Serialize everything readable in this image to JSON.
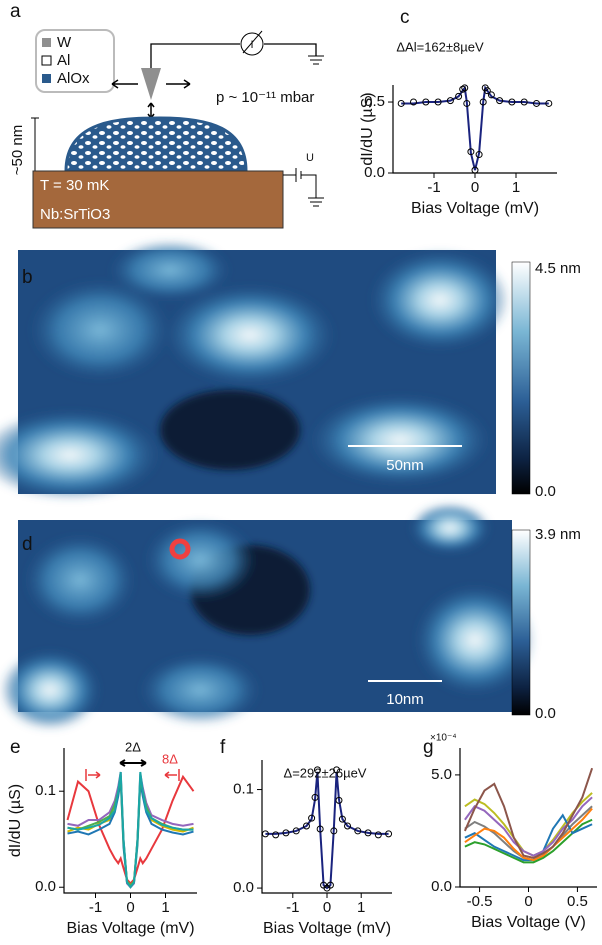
{
  "schematic": {
    "label": "a",
    "legend": [
      "W",
      "Al",
      "AlOx"
    ],
    "meter": "I",
    "pressure": "p ~ 10⁻¹¹ mbar",
    "height": "~50 nm",
    "temperature": "T = 30 mK",
    "substrate": "Nb:SrTiO3",
    "bias": "U"
  },
  "topography_b": {
    "label": "b",
    "colorbar_max": "4.5 nm",
    "colorbar_min": "0.0",
    "scale_bar": "50nm"
  },
  "topography_d": {
    "label": "d",
    "colorbar_max": "3.9 nm",
    "colorbar_min": "0.0",
    "scale_bar": "10nm"
  },
  "chart_data": [
    {
      "type": "line",
      "panel": "c",
      "x_label": "Bias Voltage (mV)",
      "y_label": "dI/dU (µS)",
      "annotations": [
        "ΔAl=162±8µeV"
      ],
      "xlim": [
        -2,
        2
      ],
      "xticks": [
        -1,
        0,
        1
      ],
      "ylim": [
        0,
        0.62
      ],
      "yticks": [
        {
          "value": 0,
          "label": "0.0"
        },
        0.5
      ],
      "x": [
        -1.8,
        -1.5,
        -1.2,
        -0.9,
        -0.6,
        -0.4,
        -0.3,
        -0.25,
        -0.2,
        -0.1,
        0,
        0.1,
        0.2,
        0.25,
        0.3,
        0.4,
        0.6,
        0.9,
        1.2,
        1.5,
        1.8
      ],
      "series": [
        {
          "color": "#1a237e",
          "markers": false,
          "values": [
            0.49,
            0.49,
            0.5,
            0.5,
            0.51,
            0.54,
            0.58,
            0.6,
            0.5,
            0.14,
            0.02,
            0.14,
            0.5,
            0.6,
            0.58,
            0.54,
            0.51,
            0.5,
            0.5,
            0.49,
            0.49
          ]
        },
        {
          "color": "#000000",
          "markers": true,
          "values": [
            0.49,
            0.5,
            0.5,
            0.5,
            0.51,
            0.54,
            0.59,
            0.6,
            0.49,
            0.15,
            0.02,
            0.13,
            0.5,
            0.6,
            0.58,
            0.55,
            0.51,
            0.5,
            0.5,
            0.49,
            0.49
          ]
        }
      ]
    },
    {
      "type": "line",
      "panel": "e",
      "x_label": "Bias Voltage (mV)",
      "y_label": "dI/dU (µS)",
      "annotations": [
        "2Δ",
        "8Δ"
      ],
      "xlim": [
        -1.9,
        1.9
      ],
      "xticks": [
        -1,
        0,
        1
      ],
      "ylim": [
        -0.006,
        0.145
      ],
      "yticks": [
        {
          "value": 0,
          "label": "0.0"
        },
        0.1
      ],
      "x": [
        -1.8,
        -1.5,
        -1.2,
        -0.9,
        -0.6,
        -0.45,
        -0.35,
        -0.28,
        -0.2,
        -0.1,
        0,
        0.1,
        0.2,
        0.28,
        0.35,
        0.45,
        0.6,
        0.9,
        1.2,
        1.5,
        1.8
      ],
      "series": [
        {
          "color": "#e8383d",
          "markers": false,
          "values": [
            0.07,
            0.11,
            0.1,
            0.065,
            0.04,
            0.03,
            0.025,
            0.03,
            0.02,
            0.008,
            0.004,
            0.008,
            0.02,
            0.03,
            0.025,
            0.03,
            0.04,
            0.06,
            0.09,
            0.115,
            0.1
          ]
        },
        {
          "color": "#d4b800",
          "markers": false,
          "values": [
            0.058,
            0.062,
            0.06,
            0.066,
            0.07,
            0.085,
            0.1,
            0.115,
            0.045,
            0.006,
            0.002,
            0.006,
            0.05,
            0.11,
            0.1,
            0.08,
            0.07,
            0.064,
            0.06,
            0.058,
            0.062
          ]
        },
        {
          "color": "#9467bd",
          "markers": false,
          "values": [
            0.066,
            0.064,
            0.07,
            0.07,
            0.078,
            0.09,
            0.105,
            0.12,
            0.05,
            0.004,
            0.0,
            0.004,
            0.05,
            0.118,
            0.104,
            0.088,
            0.075,
            0.07,
            0.066,
            0.064,
            0.066
          ]
        },
        {
          "color": "#1f77b4",
          "markers": false,
          "values": [
            0.056,
            0.058,
            0.055,
            0.06,
            0.066,
            0.078,
            0.095,
            0.112,
            0.042,
            0.005,
            0.001,
            0.005,
            0.044,
            0.11,
            0.095,
            0.078,
            0.066,
            0.06,
            0.057,
            0.055,
            0.058
          ]
        },
        {
          "color": "#4caf50",
          "markers": false,
          "values": [
            0.062,
            0.06,
            0.064,
            0.068,
            0.074,
            0.086,
            0.1,
            0.116,
            0.048,
            0.006,
            0.002,
            0.006,
            0.048,
            0.114,
            0.1,
            0.084,
            0.072,
            0.066,
            0.062,
            0.06,
            0.06
          ]
        },
        {
          "color": "#1aa6a6",
          "markers": false,
          "values": [
            0.062,
            0.06,
            0.062,
            0.065,
            0.072,
            0.08,
            0.1,
            0.12,
            0.05,
            0.005,
            0.0,
            0.005,
            0.05,
            0.12,
            0.1,
            0.08,
            0.072,
            0.065,
            0.062,
            0.06,
            0.06
          ]
        }
      ]
    },
    {
      "type": "line",
      "panel": "f",
      "x_label": "Bias Voltage (mV)",
      "annotations": [
        "Δ=292±26µeV"
      ],
      "xlim": [
        -1.9,
        1.9
      ],
      "xticks": [
        -1,
        0,
        1
      ],
      "ylim": [
        -0.005,
        0.13
      ],
      "yticks": [
        {
          "value": 0,
          "label": "0.0"
        },
        0.1
      ],
      "x": [
        -1.8,
        -1.5,
        -1.2,
        -0.9,
        -0.6,
        -0.45,
        -0.35,
        -0.28,
        -0.2,
        -0.1,
        0,
        0.1,
        0.2,
        0.28,
        0.35,
        0.45,
        0.6,
        0.9,
        1.2,
        1.5,
        1.8
      ],
      "series": [
        {
          "color": "#1a237e",
          "markers": false,
          "values": [
            0.055,
            0.055,
            0.056,
            0.058,
            0.063,
            0.07,
            0.09,
            0.118,
            0.06,
            0.003,
            0.0,
            0.003,
            0.06,
            0.118,
            0.09,
            0.07,
            0.063,
            0.058,
            0.056,
            0.055,
            0.055
          ]
        },
        {
          "color": "#000000",
          "markers": true,
          "values": [
            0.055,
            0.054,
            0.056,
            0.058,
            0.063,
            0.071,
            0.092,
            0.12,
            0.06,
            0.003,
            0.0,
            0.003,
            0.058,
            0.12,
            0.089,
            0.07,
            0.063,
            0.058,
            0.056,
            0.054,
            0.055
          ]
        }
      ]
    },
    {
      "type": "line",
      "panel": "g",
      "x_label": "Bias Voltage (V)",
      "y_multiplier": "×10⁻⁴",
      "xlim": [
        -0.7,
        0.7
      ],
      "xticks": [
        -0.5,
        0,
        0.5
      ],
      "ylim": [
        0,
        6.2
      ],
      "yticks": [
        {
          "value": 0,
          "label": "0.0"
        },
        {
          "value": 5,
          "label": "5.0"
        }
      ],
      "x": [
        -0.65,
        -0.55,
        -0.45,
        -0.35,
        -0.25,
        -0.15,
        -0.05,
        0.05,
        0.15,
        0.25,
        0.35,
        0.45,
        0.55,
        0.65
      ],
      "series": [
        {
          "color": "#bcbd22",
          "markers": false,
          "values": [
            3.6,
            3.9,
            3.7,
            3.3,
            2.8,
            2.2,
            1.6,
            1.4,
            1.6,
            2.1,
            2.7,
            3.3,
            3.8,
            4.2
          ]
        },
        {
          "color": "#7f7f7f",
          "markers": false,
          "values": [
            2.6,
            2.9,
            2.7,
            2.4,
            2.0,
            1.6,
            1.3,
            1.2,
            1.4,
            1.8,
            2.3,
            2.8,
            3.2,
            3.6
          ]
        },
        {
          "color": "#2ca02c",
          "markers": false,
          "values": [
            1.8,
            2.0,
            1.9,
            1.7,
            1.5,
            1.3,
            1.1,
            1.1,
            1.3,
            1.6,
            2.0,
            2.4,
            2.8,
            3.0
          ]
        },
        {
          "color": "#1f77b4",
          "markers": false,
          "values": [
            2.2,
            2.4,
            2.1,
            1.8,
            1.6,
            1.4,
            1.2,
            1.2,
            1.6,
            2.6,
            3.2,
            2.4,
            2.6,
            2.8
          ]
        },
        {
          "color": "#9467bd",
          "markers": false,
          "values": [
            3.0,
            3.6,
            3.4,
            3.0,
            2.6,
            2.0,
            1.6,
            1.4,
            1.6,
            2.0,
            2.6,
            3.0,
            3.6,
            4.0
          ]
        },
        {
          "color": "#ff7f0e",
          "markers": false,
          "values": [
            2.0,
            2.3,
            2.6,
            2.5,
            2.2,
            1.7,
            1.3,
            1.2,
            1.4,
            1.8,
            2.2,
            2.6,
            3.0,
            3.5
          ]
        },
        {
          "color": "#8c564b",
          "markers": false,
          "values": [
            2.5,
            3.5,
            4.3,
            4.6,
            3.6,
            2.2,
            1.4,
            1.3,
            1.5,
            1.8,
            2.4,
            3.2,
            4.0,
            5.3
          ]
        }
      ]
    }
  ]
}
